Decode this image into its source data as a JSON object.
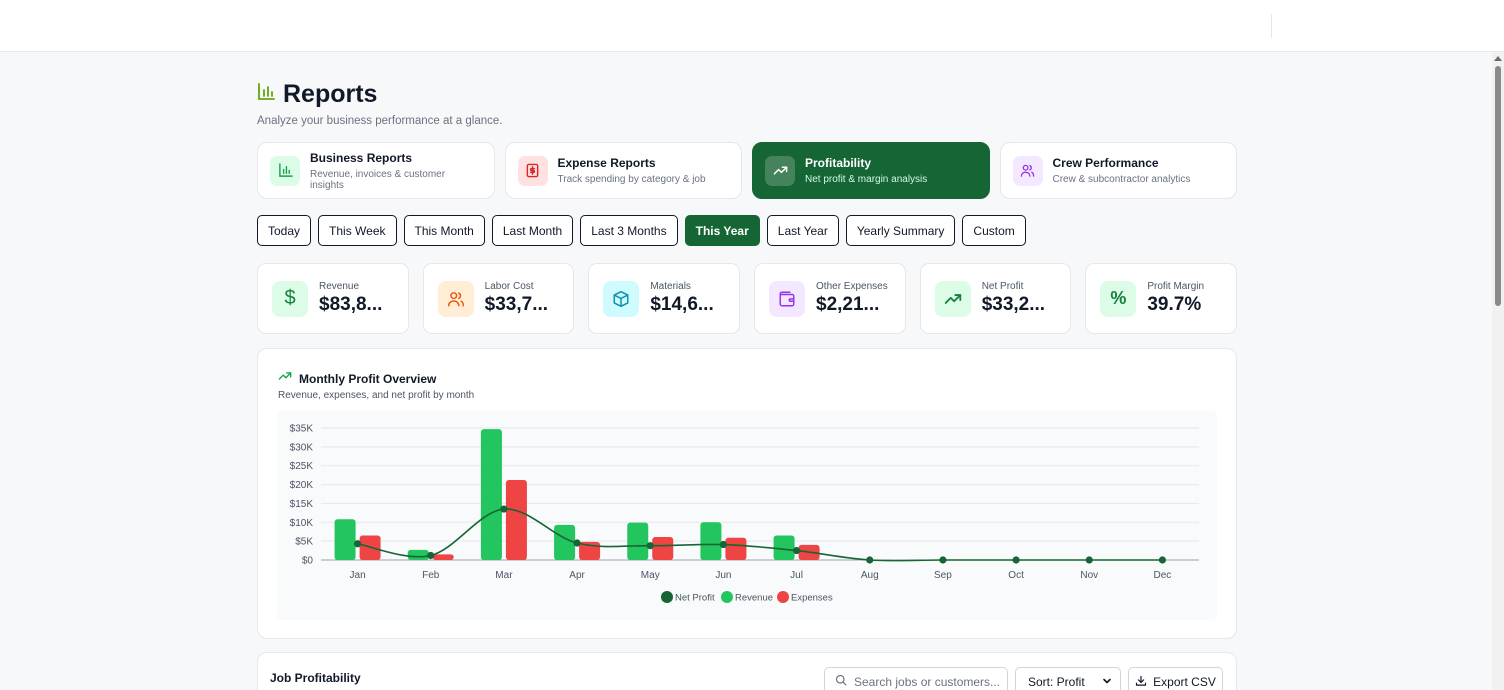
{
  "header": {
    "title": "Reports",
    "subtitle": "Analyze your business performance at a glance."
  },
  "report_tabs": [
    {
      "title": "Business Reports",
      "desc": "Revenue, invoices & customer insights",
      "icon": "bar-chart-icon",
      "active": false
    },
    {
      "title": "Expense Reports",
      "desc": "Track spending by category & job",
      "icon": "receipt-icon",
      "active": false
    },
    {
      "title": "Profitability",
      "desc": "Net profit & margin analysis",
      "icon": "trending-up-icon",
      "active": true
    },
    {
      "title": "Crew Performance",
      "desc": "Crew & subcontractor analytics",
      "icon": "users-icon",
      "active": false
    }
  ],
  "periods": [
    "Today",
    "This Week",
    "This Month",
    "Last Month",
    "Last 3 Months",
    "This Year",
    "Last Year",
    "Yearly Summary",
    "Custom"
  ],
  "active_period": "This Year",
  "kpis": [
    {
      "label": "Revenue",
      "value": "$83,8...",
      "icon": "dollar-icon"
    },
    {
      "label": "Labor Cost",
      "value": "$33,7...",
      "icon": "users-icon"
    },
    {
      "label": "Materials",
      "value": "$14,6...",
      "icon": "package-icon"
    },
    {
      "label": "Other Expenses",
      "value": "$2,21...",
      "icon": "wallet-icon"
    },
    {
      "label": "Net Profit",
      "value": "$33,2...",
      "icon": "trending-up-icon"
    },
    {
      "label": "Profit Margin",
      "value": "39.7%",
      "icon": "percent-icon"
    }
  ],
  "chart": {
    "title": "Monthly Profit Overview",
    "subtitle": "Revenue, expenses, and net profit by month"
  },
  "job_section": {
    "title": "Job Profitability",
    "search_placeholder": "Search jobs or customers...",
    "sort_label": "Sort: Profit",
    "export_label": "Export CSV"
  },
  "colors": {
    "brand": "#166534",
    "revenue": "#22c55e",
    "expenses": "#ef4444",
    "net_profit": "#166534"
  },
  "chart_data": {
    "type": "bar",
    "categories": [
      "Jan",
      "Feb",
      "Mar",
      "Apr",
      "May",
      "Jun",
      "Jul",
      "Aug",
      "Sep",
      "Oct",
      "Nov",
      "Dec"
    ],
    "series": [
      {
        "name": "Revenue",
        "type": "bar",
        "values": [
          10800,
          2700,
          34700,
          9300,
          9900,
          10000,
          6500,
          0,
          0,
          0,
          0,
          0
        ]
      },
      {
        "name": "Expenses",
        "type": "bar",
        "values": [
          6500,
          1500,
          21200,
          4800,
          6100,
          5900,
          4000,
          0,
          0,
          0,
          0,
          0
        ]
      },
      {
        "name": "Net Profit",
        "type": "line",
        "values": [
          4300,
          1200,
          13500,
          4500,
          3800,
          4100,
          2500,
          0,
          0,
          0,
          0,
          0
        ]
      }
    ],
    "y_ticks": [
      "$0",
      "$5K",
      "$10K",
      "$15K",
      "$20K",
      "$25K",
      "$30K",
      "$35K"
    ],
    "ylim": [
      0,
      35000
    ],
    "legend": [
      "Net Profit",
      "Revenue",
      "Expenses"
    ],
    "legend_position": "bottom",
    "grid": true
  }
}
